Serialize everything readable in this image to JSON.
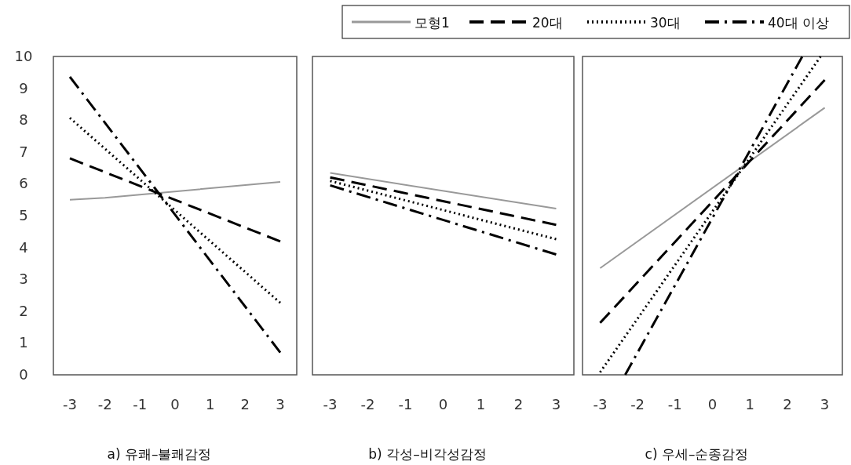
{
  "chart_data": [
    {
      "type": "line",
      "xlabel": "a) 유쾌–불쾌감정",
      "xlim": [
        -3.47,
        3.47
      ],
      "xticks": [
        -3,
        -2,
        -1,
        0,
        1,
        2,
        3
      ],
      "ylim": [
        0,
        10
      ],
      "yticks": [
        0,
        1,
        2,
        3,
        4,
        5,
        6,
        7,
        8,
        9,
        10
      ],
      "legend": "top right",
      "series": [
        {
          "name": "모형1",
          "color": "#999999",
          "line_style": "solid",
          "x": [
            -3,
            -2,
            3
          ],
          "values": [
            5.5,
            5.56,
            6.06
          ]
        },
        {
          "name": "20대",
          "color": "#000000",
          "line_style": "dashed",
          "x": [
            -3,
            3
          ],
          "values": [
            6.8,
            4.19
          ]
        },
        {
          "name": "30대",
          "color": "#000000",
          "line_style": "dotted",
          "x": [
            -3,
            3
          ],
          "values": [
            8.07,
            2.26
          ]
        },
        {
          "name": "40대 이상",
          "color": "#000000",
          "line_style": "dashdot",
          "x": [
            -3,
            3
          ],
          "values": [
            9.36,
            0.7
          ]
        }
      ]
    },
    {
      "type": "line",
      "xlabel": "b) 각성–비각성감정",
      "xlim": [
        -3.47,
        3.47
      ],
      "xticks": [
        -3,
        -2,
        -1,
        0,
        1,
        2,
        3
      ],
      "ylim": [
        0,
        10
      ],
      "tick_labels": "x",
      "series": [
        {
          "color": "#999999",
          "line_style": "solid",
          "x": [
            -3,
            3
          ],
          "values": [
            6.34,
            5.22
          ]
        },
        {
          "color": "#000000",
          "line_style": "dashed",
          "x": [
            -3,
            3
          ],
          "values": [
            6.2,
            4.71
          ]
        },
        {
          "color": "#000000",
          "line_style": "dotted",
          "x": [
            -3,
            3
          ],
          "values": [
            6.09,
            4.26
          ]
        },
        {
          "color": "#000000",
          "line_style": "dashdot",
          "x": [
            -3,
            3
          ],
          "values": [
            5.95,
            3.78
          ]
        }
      ]
    },
    {
      "type": "line",
      "xlabel": "c) 우세–순종감정",
      "xlim": [
        -3.47,
        3.47
      ],
      "xticks": [
        -3,
        -2,
        -1,
        0,
        1,
        2,
        3
      ],
      "ylim": [
        0,
        10
      ],
      "tick_labels": "x",
      "series": [
        {
          "color": "#999999",
          "line_style": "solid",
          "x": [
            -3,
            3
          ],
          "values": [
            3.35,
            8.39
          ]
        },
        {
          "color": "#000000",
          "line_style": "dashed",
          "x": [
            -3,
            3
          ],
          "values": [
            1.63,
            9.26
          ]
        },
        {
          "color": "#000000",
          "line_style": "dotted",
          "x": [
            -3,
            2.89
          ],
          "values": [
            0.08,
            10
          ]
        },
        {
          "color": "#000000",
          "line_style": "dashdot",
          "x": [
            -2.33,
            2.4
          ],
          "values": [
            0,
            10
          ]
        }
      ]
    }
  ]
}
